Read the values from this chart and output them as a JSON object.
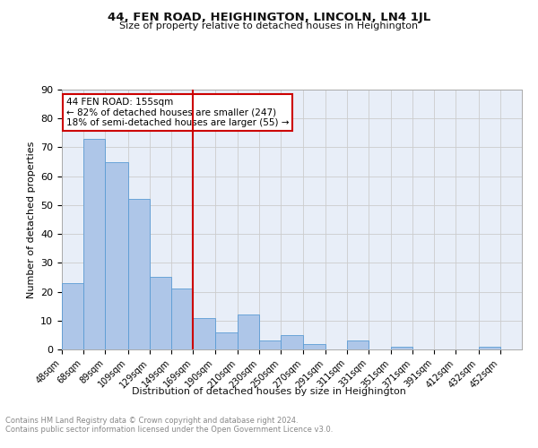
{
  "title": "44, FEN ROAD, HEIGHINGTON, LINCOLN, LN4 1JL",
  "subtitle": "Size of property relative to detached houses in Heighington",
  "xlabel": "Distribution of detached houses by size in Heighington",
  "ylabel": "Number of detached properties",
  "categories": [
    "48sqm",
    "68sqm",
    "89sqm",
    "109sqm",
    "129sqm",
    "149sqm",
    "169sqm",
    "190sqm",
    "210sqm",
    "230sqm",
    "250sqm",
    "270sqm",
    "291sqm",
    "311sqm",
    "331sqm",
    "351sqm",
    "371sqm",
    "391sqm",
    "412sqm",
    "432sqm",
    "452sqm"
  ],
  "values": [
    23,
    73,
    65,
    52,
    25,
    21,
    11,
    6,
    12,
    3,
    5,
    2,
    0,
    3,
    0,
    1,
    0,
    0,
    0,
    1,
    0
  ],
  "bar_color": "#aec6e8",
  "bar_edge_color": "#5a9bd4",
  "annotation_text_line1": "44 FEN ROAD: 155sqm",
  "annotation_text_line2": "← 82% of detached houses are smaller (247)",
  "annotation_text_line3": "18% of semi-detached houses are larger (55) →",
  "annotation_box_color": "#ffffff",
  "annotation_box_edge": "#cc0000",
  "vline_color": "#cc0000",
  "grid_color": "#cccccc",
  "background_color": "#e8eef8",
  "footer_text": "Contains HM Land Registry data © Crown copyright and database right 2024.\nContains public sector information licensed under the Open Government Licence v3.0.",
  "ylim": [
    0,
    90
  ],
  "yticks": [
    0,
    10,
    20,
    30,
    40,
    50,
    60,
    70,
    80,
    90
  ],
  "bin_edges": [
    38,
    58,
    78,
    99,
    119,
    139,
    159,
    179,
    200,
    220,
    240,
    260,
    281,
    301,
    321,
    341,
    361,
    381,
    401,
    422,
    442,
    462
  ],
  "vline_x": 159
}
